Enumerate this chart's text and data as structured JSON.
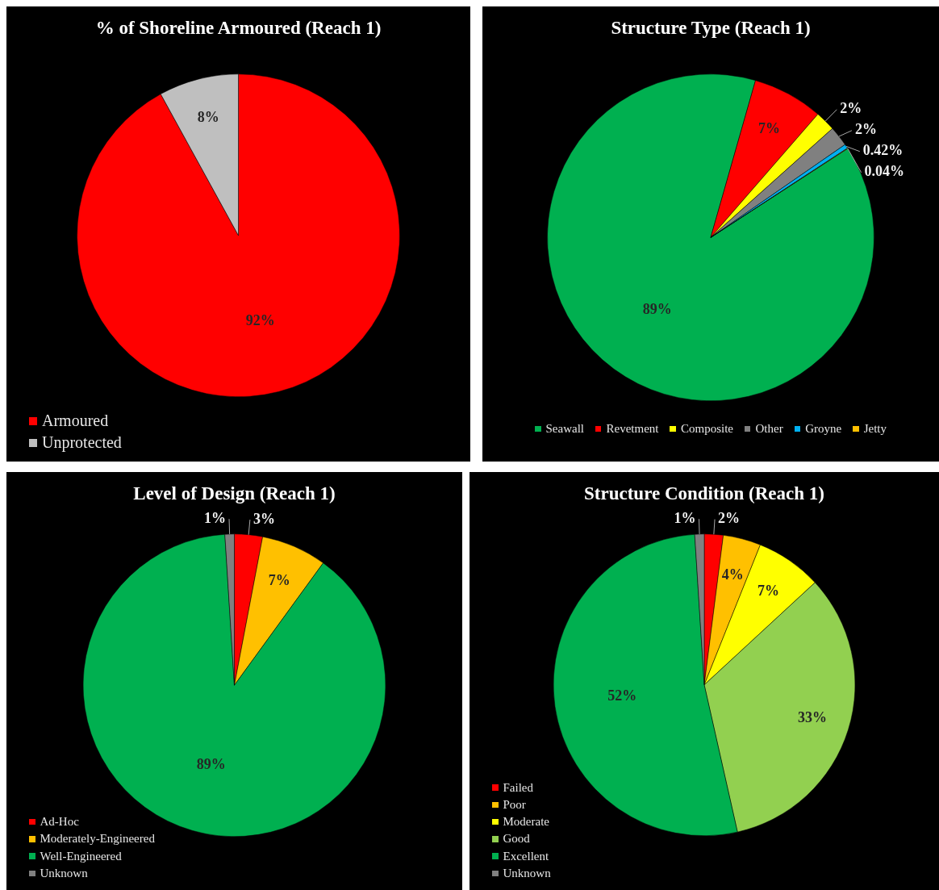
{
  "chart_data": [
    {
      "type": "pie",
      "title": "% of Shoreline Armoured (Reach 1)",
      "categories": [
        "Armoured",
        "Unprotected"
      ],
      "values": [
        92,
        8
      ],
      "colors": [
        "#ff0000",
        "#bfbfbf"
      ],
      "value_labels": [
        "92%",
        "8%"
      ],
      "legend": "bottom left"
    },
    {
      "type": "pie",
      "title": "Structure Type (Reach 1)",
      "categories": [
        "Seawall",
        "Revetment",
        "Composite",
        "Other",
        "Groyne",
        "Jetty"
      ],
      "values": [
        89,
        7,
        2,
        2,
        0.42,
        0.04
      ],
      "colors": [
        "#00b050",
        "#ff0000",
        "#ffff00",
        "#808080",
        "#00b0f0",
        "#ffc000"
      ],
      "value_labels": [
        "89%",
        "7%",
        "2%",
        "2%",
        "0.42%",
        "0.04%"
      ],
      "legend": "bottom"
    },
    {
      "type": "pie",
      "title": "Level of Design (Reach 1)",
      "categories": [
        "Ad-Hoc",
        "Moderately-Engineered",
        "Well-Engineered",
        "Unknown"
      ],
      "values": [
        3,
        7,
        89,
        1
      ],
      "colors": [
        "#ff0000",
        "#ffc000",
        "#00b050",
        "#808080"
      ],
      "value_labels": [
        "3%",
        "7%",
        "89%",
        "1%"
      ],
      "legend": "bottom left"
    },
    {
      "type": "pie",
      "title": "Structure Condition (Reach 1)",
      "categories": [
        "Failed",
        "Poor",
        "Moderate",
        "Good",
        "Excellent",
        "Unknown"
      ],
      "values": [
        2,
        4,
        7,
        33,
        52,
        1
      ],
      "colors": [
        "#ff0000",
        "#ffc000",
        "#ffff00",
        "#92d050",
        "#00b050",
        "#808080"
      ],
      "value_labels": [
        "2%",
        "4%",
        "7%",
        "33%",
        "52%",
        "1%"
      ],
      "legend": "bottom left"
    }
  ]
}
